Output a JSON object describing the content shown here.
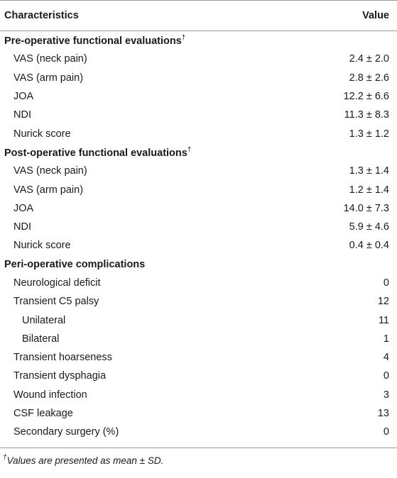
{
  "table": {
    "header": [
      "Characteristics",
      "Value"
    ],
    "sections": [
      {
        "title": "Pre-operative functional evaluations",
        "marker": "†",
        "rows": [
          {
            "label": "VAS (neck pain)",
            "value": "2.4 ± 2.0"
          },
          {
            "label": "VAS (arm pain)",
            "value": "2.8 ± 2.6"
          },
          {
            "label": "JOA",
            "value": "12.2 ± 6.6"
          },
          {
            "label": "NDI",
            "value": "11.3 ± 8.3"
          },
          {
            "label": "Nurick score",
            "value": "1.3 ± 1.2"
          }
        ]
      },
      {
        "title": "Post-operative functional evaluations",
        "marker": "†",
        "rows": [
          {
            "label": "VAS (neck pain)",
            "value": "1.3 ± 1.4"
          },
          {
            "label": "VAS (arm pain)",
            "value": "1.2 ± 1.4"
          },
          {
            "label": "JOA",
            "value": "14.0 ± 7.3"
          },
          {
            "label": "NDI",
            "value": "5.9 ± 4.6"
          },
          {
            "label": "Nurick score",
            "value": "0.4 ± 0.4"
          }
        ]
      },
      {
        "title": "Peri-operative complications",
        "rows": [
          {
            "label": "Neurological deficit",
            "value": 0
          },
          {
            "label": "Transient C5 palsy",
            "value": 12,
            "subrows": [
              {
                "label": "Unilateral",
                "value": 11
              },
              {
                "label": "Bilateral",
                "value": 1
              }
            ]
          },
          {
            "label": "Transient hoarseness",
            "value": 4
          },
          {
            "label": "Transient dysphagia",
            "value": 0
          },
          {
            "label": "Wound infection",
            "value": 3
          },
          {
            "label": "CSF leakage",
            "value": 13
          },
          {
            "label": "Secondary surgery (%)",
            "value": 0
          }
        ]
      }
    ]
  },
  "footnote": {
    "marker": "†",
    "text": "Values are presented as mean ± SD."
  }
}
